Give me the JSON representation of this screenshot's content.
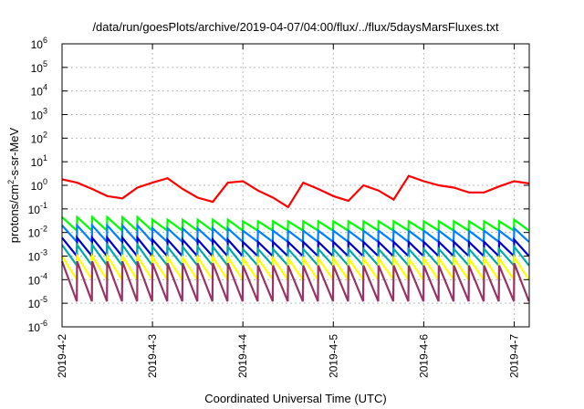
{
  "chart_data": {
    "type": "line",
    "title": "/data/run/goesPlots/archive/2019-04-07/04:00/flux/../flux/5daysMarsFluxes.txt",
    "ylabel_pre": "protons/cm",
    "ylabel_sup": "2",
    "ylabel_post": "-s-sr-MeV",
    "xlabel": "Coordinated Universal Time (UTC)",
    "y_scale": "log",
    "ylim": [
      1e-06,
      1000000.0
    ],
    "y_tick_mantissa": "10",
    "y_tick_exponents": [
      "-6",
      "-5",
      "-4",
      "-3",
      "-2",
      "-1",
      "0",
      "1",
      "2",
      "3",
      "4",
      "5",
      "6"
    ],
    "xlim": [
      "2019-04-02 00:00",
      "2019-04-07 04:00"
    ],
    "x_ticks": [
      "2019-4-2",
      "2019-4-3",
      "2019-4-4",
      "2019-4-5",
      "2019-4-6",
      "2019-4-7"
    ],
    "grid": true,
    "legend": "none",
    "series": [
      {
        "color": "#ff0000",
        "x": [
          "2019-04-02 00:00",
          "2019-04-02 04:00",
          "2019-04-02 08:00",
          "2019-04-02 12:00",
          "2019-04-02 16:00",
          "2019-04-02 20:00",
          "2019-04-03 00:00",
          "2019-04-03 04:00",
          "2019-04-03 08:00",
          "2019-04-03 12:00",
          "2019-04-03 16:00",
          "2019-04-03 20:00",
          "2019-04-04 00:00",
          "2019-04-04 04:00",
          "2019-04-04 08:00",
          "2019-04-04 12:00",
          "2019-04-04 16:00",
          "2019-04-04 20:00",
          "2019-04-05 00:00",
          "2019-04-05 04:00",
          "2019-04-05 08:00",
          "2019-04-05 12:00",
          "2019-04-05 16:00",
          "2019-04-05 20:00",
          "2019-04-06 00:00",
          "2019-04-06 04:00",
          "2019-04-06 08:00",
          "2019-04-06 12:00",
          "2019-04-06 16:00",
          "2019-04-06 20:00",
          "2019-04-07 00:00",
          "2019-04-07 04:00"
        ],
        "values": [
          1.8,
          1.3,
          0.7,
          0.35,
          0.28,
          0.8,
          1.3,
          2.0,
          0.7,
          0.3,
          0.2,
          1.3,
          1.5,
          0.6,
          0.3,
          0.12,
          1.3,
          0.7,
          0.35,
          0.22,
          1.0,
          0.6,
          0.25,
          2.5,
          1.5,
          1.0,
          0.8,
          0.5,
          0.5,
          0.9,
          1.5,
          1.2
        ]
      },
      {
        "color": "#00ff00",
        "sawtooth_hi": [
          0.045,
          0.035,
          0.03,
          0.03,
          0.03,
          0.035
        ],
        "sawtooth_lo": 0.012,
        "teeth_per_day": 6
      },
      {
        "color": "#0080ff",
        "sawtooth_hi": [
          0.02,
          0.015,
          0.012,
          0.012,
          0.012,
          0.015
        ],
        "sawtooth_lo": 0.004,
        "teeth_per_day": 6
      },
      {
        "color": "#0000cc",
        "sawtooth_hi": [
          0.006,
          0.005,
          0.004,
          0.004,
          0.004,
          0.005
        ],
        "sawtooth_lo": 0.001,
        "teeth_per_day": 6
      },
      {
        "color": "#00aaaa",
        "sawtooth_hi": [
          0.003,
          0.0025,
          0.002,
          0.002,
          0.002,
          0.0025
        ],
        "sawtooth_lo": 0.0004,
        "teeth_per_day": 6
      },
      {
        "color": "#ffff00",
        "sawtooth_hi": [
          0.001,
          0.0009,
          0.0008,
          0.0008,
          0.0008,
          0.0009
        ],
        "sawtooth_lo": 0.0001,
        "teeth_per_day": 6
      },
      {
        "color": "#993366",
        "sawtooth_hi": [
          0.0006,
          0.0005,
          0.0004,
          0.0004,
          0.0004,
          0.0005
        ],
        "sawtooth_lo": 1.2e-05,
        "teeth_per_day": 6
      }
    ]
  }
}
